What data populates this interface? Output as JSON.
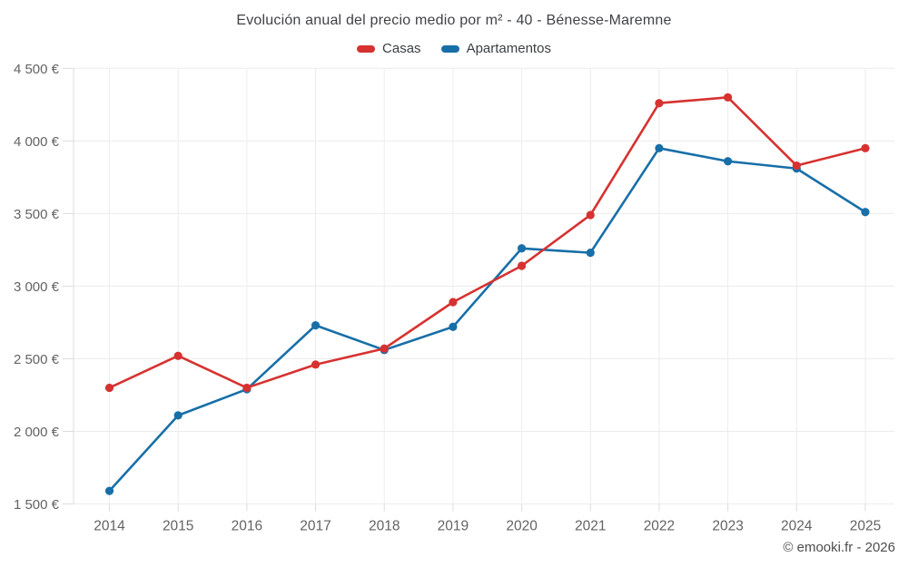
{
  "header": {
    "title": "Evolución anual del precio medio por m² - 40 - Bénesse-Maremne"
  },
  "legend": [
    {
      "label": "Casas",
      "color": "#d63230"
    },
    {
      "label": "Apartamentos",
      "color": "#186fa8"
    }
  ],
  "footer": {
    "attribution": "© emooki.fr - 2026"
  },
  "chart_data": {
    "type": "line",
    "title": "Evolución anual del precio medio por m² - 40 - Bénesse-Maremne",
    "categories": [
      "2014",
      "2015",
      "2016",
      "2017",
      "2018",
      "2019",
      "2020",
      "2021",
      "2022",
      "2023",
      "2024",
      "2025"
    ],
    "series": [
      {
        "name": "Casas",
        "color": "#d63230",
        "values": [
          2300,
          2520,
          2300,
          2460,
          2570,
          2890,
          3140,
          3490,
          4260,
          4300,
          3830,
          3950
        ]
      },
      {
        "name": "Apartamentos",
        "color": "#186fa8",
        "values": [
          1590,
          2110,
          2290,
          2730,
          2560,
          2720,
          3260,
          3230,
          3950,
          3860,
          3810,
          3510
        ]
      }
    ],
    "xlabel": "",
    "ylabel": "",
    "ylim": [
      1500,
      4500
    ],
    "ytick_step": 500,
    "ytick_suffix": " €",
    "grid": true,
    "legend_position": "top"
  }
}
